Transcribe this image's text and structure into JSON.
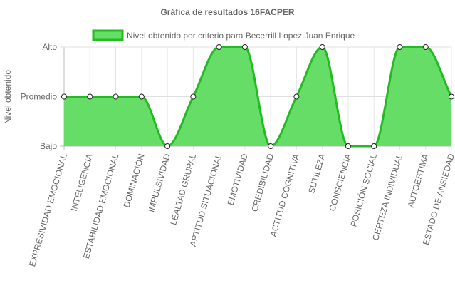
{
  "chart_data": {
    "type": "area",
    "title": "Gráfica de resultados 16FACPER",
    "ylabel": "Nivel obtenido",
    "xlabel": "",
    "y_levels": [
      "Bajo",
      "Promedio",
      "Alto"
    ],
    "ylim": [
      0,
      2
    ],
    "grid": true,
    "legend_position": "top",
    "categories": [
      "EXPRESIVIDAD EMOCIONAL",
      "INTELIGENCIA",
      "ESTABILIDAD EMOCIONAL",
      "DOMINACIÓN",
      "IMPULSIVIDAD",
      "LEALTAD GRUPAL",
      "APTITUD SITUACIONAL",
      "EMOTIVIDAD",
      "CREDIBILIDAD",
      "ACTITUD COGNITIVA",
      "SUTILEZA",
      "CONSCIENCIA",
      "POSICIÓN SOCIAL",
      "CERTEZA INDIVIDUAL",
      "AUTOESTIMA",
      "ESTADO DE ANSIEDAD"
    ],
    "series": [
      {
        "name": "Nivel obtenido por criterio para Becerrill Lopez Juan Enrique",
        "values": [
          1,
          1,
          1,
          1,
          0,
          1,
          2,
          2,
          0,
          1,
          2,
          0,
          0,
          2,
          2,
          1
        ],
        "fill_color": "#66dd66",
        "line_color": "#22bb22"
      }
    ]
  }
}
